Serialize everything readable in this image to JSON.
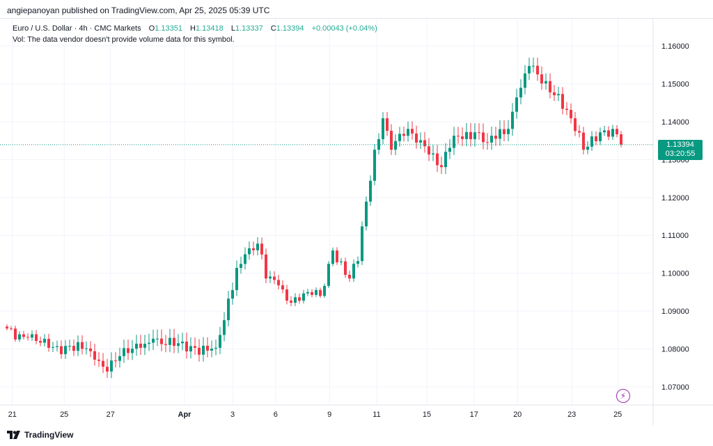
{
  "publisher": "angiepanoyan published on TradingView.com, Apr 25, 2025 05:39 UTC",
  "legend": {
    "symbol": "Euro / U.S. Dollar · 4h · CMC Markets",
    "o_label": "O",
    "o": "1.13351",
    "h_label": "H",
    "h": "1.13418",
    "l_label": "L",
    "l": "1.13337",
    "c_label": "C",
    "c": "1.13394",
    "change": "+0.00043 (+0.04%)",
    "vol": "Vol: The data vendor doesn't provide volume data for this symbol."
  },
  "price_tag": {
    "price": "1.13394",
    "countdown": "03:20:55"
  },
  "logo": "TradingView",
  "colors": {
    "up": "#089981",
    "down": "#f23645",
    "grid": "#f0f3fa",
    "text": "#131722"
  },
  "chart_data": {
    "type": "candlestick",
    "title": "Euro / U.S. Dollar · 4h · CMC Markets",
    "ylim": [
      1.065,
      1.1635
    ],
    "y_ticks": [
      "1.07000",
      "1.08000",
      "1.09000",
      "1.10000",
      "1.11000",
      "1.12000",
      "1.13000",
      "1.14000",
      "1.15000",
      "1.16000"
    ],
    "x_ticks": [
      {
        "label": "21",
        "i": 1.3
      },
      {
        "label": "25",
        "i": 13.7
      },
      {
        "label": "27",
        "i": 24.8
      },
      {
        "label": "Apr",
        "i": 42.5
      },
      {
        "label": "3",
        "i": 54
      },
      {
        "label": "6",
        "i": 64.3
      },
      {
        "label": "9",
        "i": 77.2
      },
      {
        "label": "11",
        "i": 88.5
      },
      {
        "label": "15",
        "i": 100.5
      },
      {
        "label": "17",
        "i": 111.8
      },
      {
        "label": "20",
        "i": 122.2
      },
      {
        "label": "23",
        "i": 135.2
      },
      {
        "label": "25",
        "i": 146.2
      }
    ],
    "candle_count": 148,
    "close_path": [
      {
        "i": 0,
        "p": 1.0854
      },
      {
        "i": 5,
        "p": 1.083
      },
      {
        "i": 10,
        "p": 1.0803
      },
      {
        "i": 15,
        "p": 1.0808
      },
      {
        "i": 20,
        "p": 1.0794
      },
      {
        "i": 23,
        "p": 1.0753
      },
      {
        "i": 27,
        "p": 1.0781
      },
      {
        "i": 32,
        "p": 1.0803
      },
      {
        "i": 35,
        "p": 1.0827
      },
      {
        "i": 40,
        "p": 1.0808
      },
      {
        "i": 45,
        "p": 1.0803
      },
      {
        "i": 50,
        "p": 1.0803
      },
      {
        "i": 52,
        "p": 1.0876
      },
      {
        "i": 55,
        "p": 1.1014
      },
      {
        "i": 57,
        "p": 1.105
      },
      {
        "i": 60,
        "p": 1.1078
      },
      {
        "i": 62,
        "p": 1.0986
      },
      {
        "i": 65,
        "p": 1.0968
      },
      {
        "i": 68,
        "p": 1.0922
      },
      {
        "i": 72,
        "p": 1.095
      },
      {
        "i": 75,
        "p": 1.094
      },
      {
        "i": 78,
        "p": 1.106
      },
      {
        "i": 82,
        "p": 1.0986
      },
      {
        "i": 84,
        "p": 1.1032
      },
      {
        "i": 86,
        "p": 1.1189
      },
      {
        "i": 88,
        "p": 1.1326
      },
      {
        "i": 90,
        "p": 1.1409
      },
      {
        "i": 92,
        "p": 1.1326
      },
      {
        "i": 96,
        "p": 1.1381
      },
      {
        "i": 100,
        "p": 1.1335
      },
      {
        "i": 104,
        "p": 1.128
      },
      {
        "i": 107,
        "p": 1.1363
      },
      {
        "i": 112,
        "p": 1.1372
      },
      {
        "i": 115,
        "p": 1.1345
      },
      {
        "i": 120,
        "p": 1.1381
      },
      {
        "i": 122,
        "p": 1.1464
      },
      {
        "i": 125,
        "p": 1.1547
      },
      {
        "i": 128,
        "p": 1.1501
      },
      {
        "i": 132,
        "p": 1.1473
      },
      {
        "i": 135,
        "p": 1.1409
      },
      {
        "i": 138,
        "p": 1.1326
      },
      {
        "i": 142,
        "p": 1.1372
      },
      {
        "i": 145,
        "p": 1.1381
      },
      {
        "i": 147,
        "p": 1.1339
      }
    ],
    "last_price": 1.13394
  }
}
